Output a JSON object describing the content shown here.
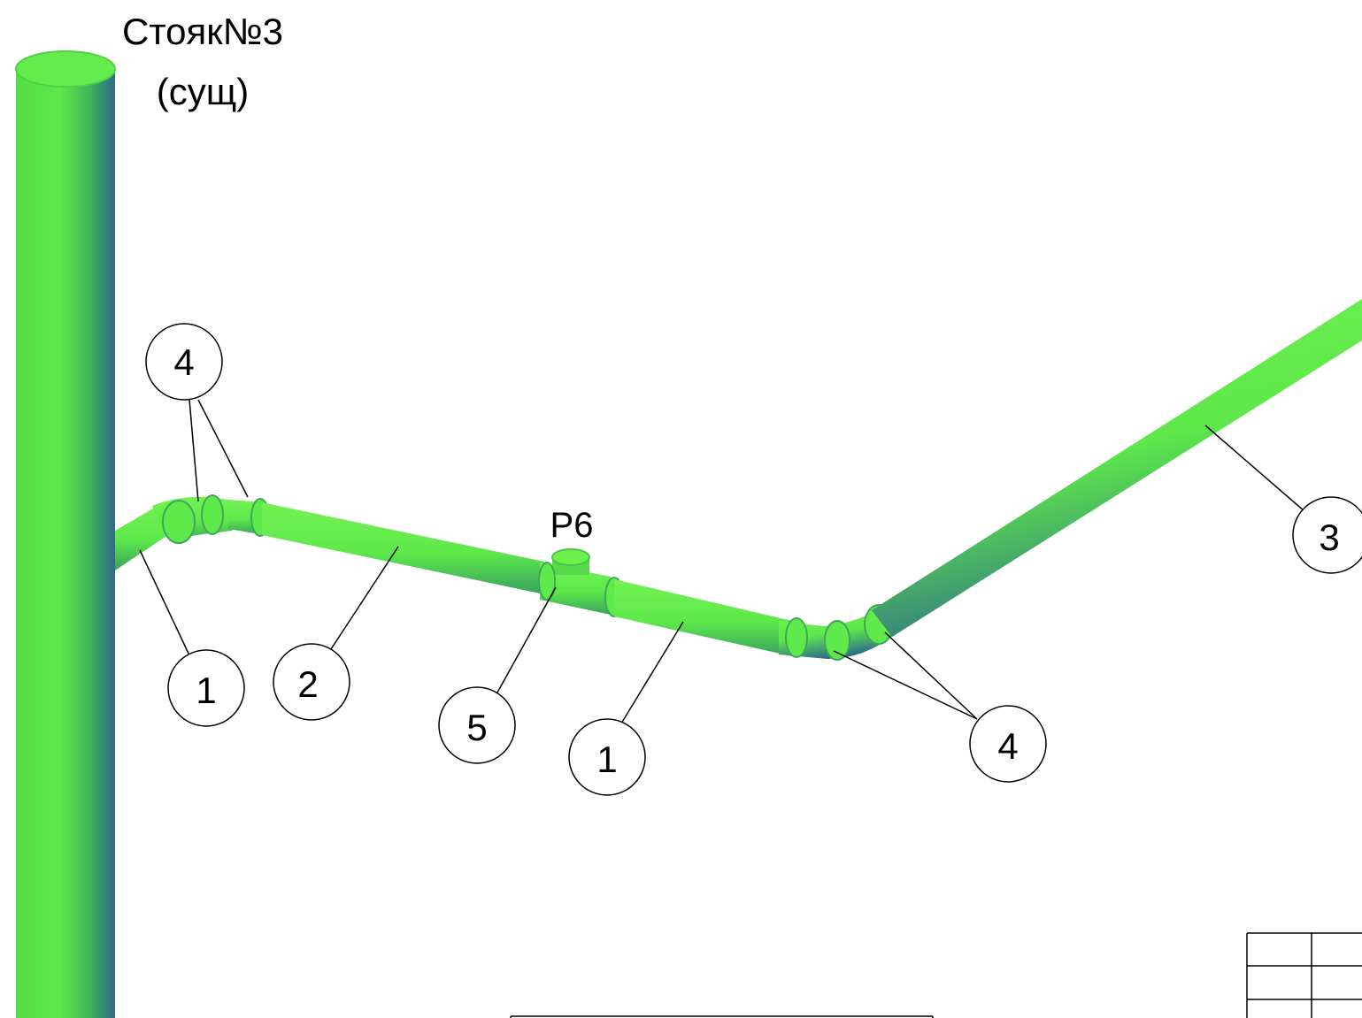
{
  "riser": {
    "title_line1": "Стояк№3",
    "title_line2": "(сущ)"
  },
  "fitting_tag": "Р6",
  "callouts": [
    {
      "id": "c4a",
      "text": "4"
    },
    {
      "id": "c1a",
      "text": "1"
    },
    {
      "id": "c2",
      "text": "2"
    },
    {
      "id": "c5",
      "text": "5"
    },
    {
      "id": "c1b",
      "text": "1"
    },
    {
      "id": "c4b",
      "text": "4"
    },
    {
      "id": "c3",
      "text": "3"
    }
  ],
  "colors": {
    "pipe_light": "#6cf04a",
    "pipe_mid": "#4fd54a",
    "pipe_dark": "#2f6f86",
    "line": "#000000"
  }
}
